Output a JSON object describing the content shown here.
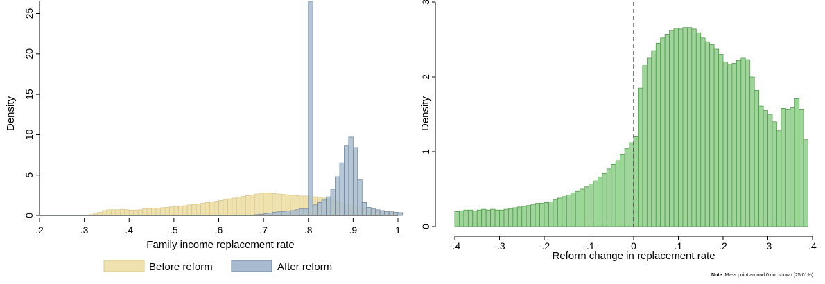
{
  "chart_data": [
    {
      "type": "bar",
      "subtype": "overlaid-histogram",
      "xlabel": "Family income replacement rate",
      "ylabel": "Density",
      "xlim": [
        0.2,
        1.0
      ],
      "ylim": [
        0,
        26.5
      ],
      "xticks": [
        ".2",
        ".3",
        ".4",
        ".5",
        ".6",
        ".7",
        ".8",
        ".9",
        "1"
      ],
      "xtick_values": [
        0.2,
        0.3,
        0.4,
        0.5,
        0.6,
        0.7,
        0.8,
        0.9,
        1.0
      ],
      "yticks": [
        "0",
        "5",
        "10",
        "15",
        "20",
        "25"
      ],
      "ytick_values": [
        0,
        5,
        10,
        15,
        20,
        25
      ],
      "bin_start": 0.21,
      "bin_width": 0.01,
      "legend_position": "bottom",
      "series": [
        {
          "name": "Before reform",
          "color": "#f0e2b0",
          "stroke": "#d8c68a",
          "values": [
            0.05,
            0.05,
            0.05,
            0.05,
            0.05,
            0.05,
            0.05,
            0.05,
            0.05,
            0.05,
            0.1,
            0.2,
            0.4,
            0.6,
            0.7,
            0.7,
            0.7,
            0.75,
            0.7,
            0.65,
            0.65,
            0.7,
            0.8,
            0.85,
            0.9,
            0.9,
            0.95,
            1.0,
            1.05,
            1.1,
            1.15,
            1.2,
            1.3,
            1.35,
            1.4,
            1.5,
            1.6,
            1.65,
            1.75,
            1.85,
            1.95,
            2.05,
            2.15,
            2.25,
            2.35,
            2.45,
            2.55,
            2.65,
            2.75,
            2.8,
            2.75,
            2.7,
            2.65,
            2.6,
            2.55,
            2.5,
            2.45,
            2.4,
            2.4,
            2.35,
            2.3,
            2.25,
            2.15,
            2.05,
            1.9,
            1.75,
            1.55,
            1.4,
            1.25,
            1.1,
            0.95,
            0.8,
            0.65,
            0.55,
            0.45,
            0.4,
            0.35,
            0.3,
            0.25,
            0.25
          ]
        },
        {
          "name": "After reform",
          "color": "#a9bccf",
          "stroke": "#6e879f",
          "values": [
            0.05,
            0.05,
            0.05,
            0.05,
            0.05,
            0.05,
            0.05,
            0.05,
            0.05,
            0.05,
            0.05,
            0.05,
            0.05,
            0.05,
            0.05,
            0.05,
            0.05,
            0.05,
            0.05,
            0.05,
            0.05,
            0.05,
            0.05,
            0.05,
            0.05,
            0.05,
            0.05,
            0.05,
            0.05,
            0.05,
            0.05,
            0.05,
            0.05,
            0.05,
            0.05,
            0.05,
            0.05,
            0.05,
            0.05,
            0.05,
            0.05,
            0.05,
            0.05,
            0.05,
            0.05,
            0.05,
            0.05,
            0.1,
            0.15,
            0.2,
            0.3,
            0.4,
            0.45,
            0.5,
            0.55,
            0.6,
            0.7,
            0.8,
            0.8,
            26.5,
            1.3,
            1.6,
            1.9,
            2.3,
            3.2,
            4.8,
            6.5,
            8.6,
            9.7,
            8.4,
            4.4,
            1.6,
            1.0,
            0.8,
            0.7,
            0.6,
            0.5,
            0.45,
            0.4,
            0.35
          ]
        }
      ]
    },
    {
      "type": "bar",
      "subtype": "histogram",
      "xlabel": "Reform change in replacement rate",
      "ylabel": "Density",
      "xlim": [
        -0.4,
        0.4
      ],
      "ylim": [
        0,
        3.0
      ],
      "xticks": [
        "-.4",
        "-.3",
        "-.2",
        "-.1",
        "0",
        ".1",
        ".2",
        ".3",
        ".4"
      ],
      "xtick_values": [
        -0.4,
        -0.3,
        -0.2,
        -0.1,
        0,
        0.1,
        0.2,
        0.3,
        0.4
      ],
      "yticks": [
        "0",
        "1",
        "2",
        "3"
      ],
      "ytick_values": [
        0,
        1,
        2,
        3
      ],
      "reference_line_x": 0,
      "series": [
        {
          "name": "",
          "color": "#9fd49a",
          "stroke": "#4f9b49",
          "bins": [
            {
              "x0": -0.4,
              "x1": -0.39,
              "y": 0.2
            },
            {
              "x0": -0.39,
              "x1": -0.38,
              "y": 0.21
            },
            {
              "x0": -0.38,
              "x1": -0.37,
              "y": 0.22
            },
            {
              "x0": -0.37,
              "x1": -0.36,
              "y": 0.22
            },
            {
              "x0": -0.36,
              "x1": -0.35,
              "y": 0.21
            },
            {
              "x0": -0.35,
              "x1": -0.34,
              "y": 0.22
            },
            {
              "x0": -0.34,
              "x1": -0.33,
              "y": 0.23
            },
            {
              "x0": -0.33,
              "x1": -0.32,
              "y": 0.22
            },
            {
              "x0": -0.32,
              "x1": -0.31,
              "y": 0.23
            },
            {
              "x0": -0.31,
              "x1": -0.3,
              "y": 0.22
            },
            {
              "x0": -0.3,
              "x1": -0.29,
              "y": 0.22
            },
            {
              "x0": -0.29,
              "x1": -0.28,
              "y": 0.23
            },
            {
              "x0": -0.28,
              "x1": -0.27,
              "y": 0.24
            },
            {
              "x0": -0.27,
              "x1": -0.26,
              "y": 0.25
            },
            {
              "x0": -0.26,
              "x1": -0.25,
              "y": 0.26
            },
            {
              "x0": -0.25,
              "x1": -0.24,
              "y": 0.27
            },
            {
              "x0": -0.24,
              "x1": -0.23,
              "y": 0.28
            },
            {
              "x0": -0.23,
              "x1": -0.22,
              "y": 0.29
            },
            {
              "x0": -0.22,
              "x1": -0.21,
              "y": 0.31
            },
            {
              "x0": -0.21,
              "x1": -0.2,
              "y": 0.31
            },
            {
              "x0": -0.2,
              "x1": -0.19,
              "y": 0.32
            },
            {
              "x0": -0.19,
              "x1": -0.18,
              "y": 0.33
            },
            {
              "x0": -0.18,
              "x1": -0.17,
              "y": 0.36
            },
            {
              "x0": -0.17,
              "x1": -0.16,
              "y": 0.38
            },
            {
              "x0": -0.16,
              "x1": -0.15,
              "y": 0.4
            },
            {
              "x0": -0.15,
              "x1": -0.14,
              "y": 0.42
            },
            {
              "x0": -0.14,
              "x1": -0.13,
              "y": 0.45
            },
            {
              "x0": -0.13,
              "x1": -0.12,
              "y": 0.47
            },
            {
              "x0": -0.12,
              "x1": -0.11,
              "y": 0.5
            },
            {
              "x0": -0.11,
              "x1": -0.1,
              "y": 0.53
            },
            {
              "x0": -0.1,
              "x1": -0.09,
              "y": 0.57
            },
            {
              "x0": -0.09,
              "x1": -0.08,
              "y": 0.61
            },
            {
              "x0": -0.08,
              "x1": -0.07,
              "y": 0.66
            },
            {
              "x0": -0.07,
              "x1": -0.06,
              "y": 0.71
            },
            {
              "x0": -0.06,
              "x1": -0.05,
              "y": 0.77
            },
            {
              "x0": -0.05,
              "x1": -0.04,
              "y": 0.83
            },
            {
              "x0": -0.04,
              "x1": -0.03,
              "y": 0.88
            },
            {
              "x0": -0.03,
              "x1": -0.02,
              "y": 0.96
            },
            {
              "x0": -0.02,
              "x1": -0.01,
              "y": 1.04
            },
            {
              "x0": -0.01,
              "x1": 0.0,
              "y": 1.12
            },
            {
              "x0": 0.0,
              "x1": 0.01,
              "y": 1.2
            },
            {
              "x0": 0.01,
              "x1": 0.02,
              "y": 1.85
            },
            {
              "x0": 0.02,
              "x1": 0.03,
              "y": 2.15
            },
            {
              "x0": 0.03,
              "x1": 0.04,
              "y": 2.25
            },
            {
              "x0": 0.04,
              "x1": 0.05,
              "y": 2.35
            },
            {
              "x0": 0.05,
              "x1": 0.06,
              "y": 2.45
            },
            {
              "x0": 0.06,
              "x1": 0.07,
              "y": 2.52
            },
            {
              "x0": 0.07,
              "x1": 0.08,
              "y": 2.57
            },
            {
              "x0": 0.08,
              "x1": 0.09,
              "y": 2.62
            },
            {
              "x0": 0.09,
              "x1": 0.1,
              "y": 2.65
            },
            {
              "x0": 0.1,
              "x1": 0.11,
              "y": 2.64
            },
            {
              "x0": 0.11,
              "x1": 0.12,
              "y": 2.66
            },
            {
              "x0": 0.12,
              "x1": 0.13,
              "y": 2.66
            },
            {
              "x0": 0.13,
              "x1": 0.14,
              "y": 2.64
            },
            {
              "x0": 0.14,
              "x1": 0.15,
              "y": 2.59
            },
            {
              "x0": 0.15,
              "x1": 0.16,
              "y": 2.52
            },
            {
              "x0": 0.16,
              "x1": 0.17,
              "y": 2.47
            },
            {
              "x0": 0.17,
              "x1": 0.18,
              "y": 2.43
            },
            {
              "x0": 0.18,
              "x1": 0.19,
              "y": 2.37
            },
            {
              "x0": 0.19,
              "x1": 0.2,
              "y": 2.3
            },
            {
              "x0": 0.2,
              "x1": 0.21,
              "y": 2.2
            },
            {
              "x0": 0.21,
              "x1": 0.22,
              "y": 2.17
            },
            {
              "x0": 0.22,
              "x1": 0.23,
              "y": 2.18
            },
            {
              "x0": 0.23,
              "x1": 0.24,
              "y": 2.22
            },
            {
              "x0": 0.24,
              "x1": 0.25,
              "y": 2.25
            },
            {
              "x0": 0.25,
              "x1": 0.26,
              "y": 2.23
            },
            {
              "x0": 0.26,
              "x1": 0.27,
              "y": 2.0
            },
            {
              "x0": 0.27,
              "x1": 0.28,
              "y": 1.82
            },
            {
              "x0": 0.28,
              "x1": 0.29,
              "y": 1.61
            },
            {
              "x0": 0.29,
              "x1": 0.3,
              "y": 1.55
            },
            {
              "x0": 0.3,
              "x1": 0.31,
              "y": 1.5
            },
            {
              "x0": 0.31,
              "x1": 0.32,
              "y": 1.4
            },
            {
              "x0": 0.32,
              "x1": 0.33,
              "y": 1.28
            },
            {
              "x0": 0.33,
              "x1": 0.34,
              "y": 1.58
            },
            {
              "x0": 0.34,
              "x1": 0.35,
              "y": 1.56
            },
            {
              "x0": 0.35,
              "x1": 0.36,
              "y": 1.59
            },
            {
              "x0": 0.36,
              "x1": 0.37,
              "y": 1.71
            },
            {
              "x0": 0.37,
              "x1": 0.38,
              "y": 1.56
            },
            {
              "x0": 0.38,
              "x1": 0.39,
              "y": 1.16
            }
          ]
        }
      ]
    }
  ],
  "legend": {
    "items": [
      {
        "label": "Before reform",
        "color": "#f0e2b0",
        "stroke": "#d8c68a"
      },
      {
        "label": "After reform",
        "color": "#a9bccf",
        "stroke": "#6e879f"
      }
    ]
  },
  "note": {
    "bold": "Note",
    "text": ": Mass point around 0 not shown (25.01%)."
  }
}
